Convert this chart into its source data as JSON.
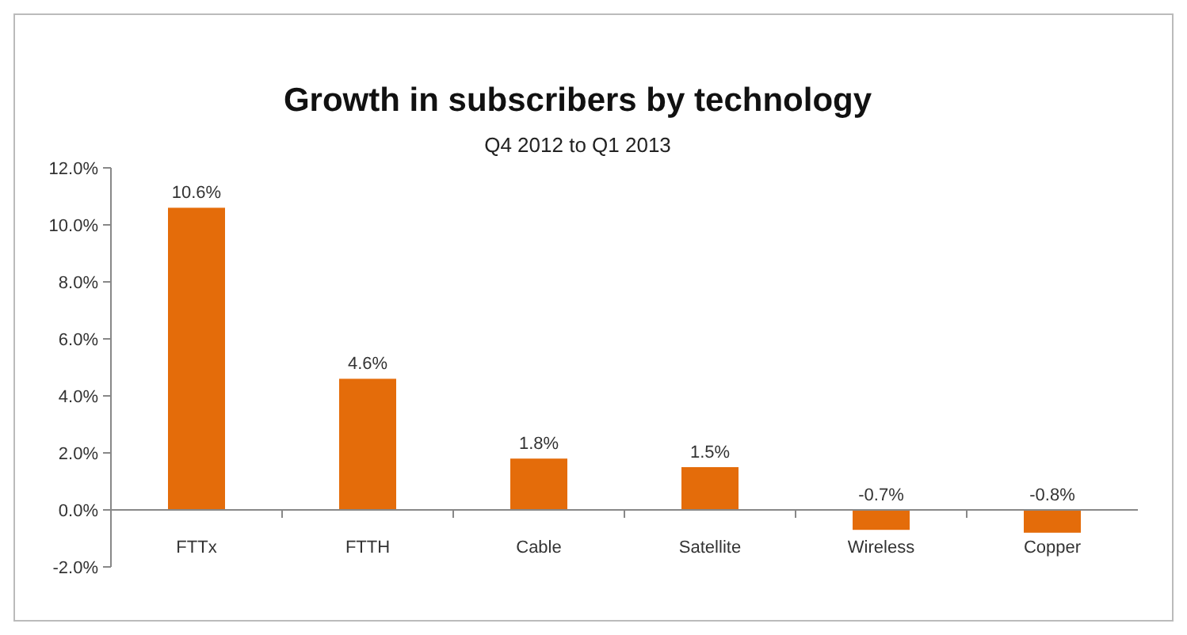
{
  "chart_data": {
    "type": "bar",
    "title": "Growth in subscribers by technology",
    "subtitle": "Q4 2012 to Q1 2013",
    "categories": [
      "FTTx",
      "FTTH",
      "Cable",
      "Satellite",
      "Wireless",
      "Copper"
    ],
    "values": [
      10.6,
      4.6,
      1.8,
      1.5,
      -0.7,
      -0.8
    ],
    "color": "#e46c0a",
    "value_labels": [
      "10.6%",
      "4.6%",
      "1.8%",
      "1.5%",
      "-0.7%",
      "-0.8%"
    ],
    "ylim": [
      -2,
      12
    ],
    "yticks": [
      {
        "value": -2,
        "label": "-2.0%"
      },
      {
        "value": 0,
        "label": "0.0%"
      },
      {
        "value": 2,
        "label": "2.0%"
      },
      {
        "value": 4,
        "label": "4.0%"
      },
      {
        "value": 6,
        "label": "6.0%"
      },
      {
        "value": 8,
        "label": "8.0%"
      },
      {
        "value": 10,
        "label": "10.0%"
      },
      {
        "value": 12,
        "label": "12.0%"
      }
    ],
    "grid": false
  }
}
